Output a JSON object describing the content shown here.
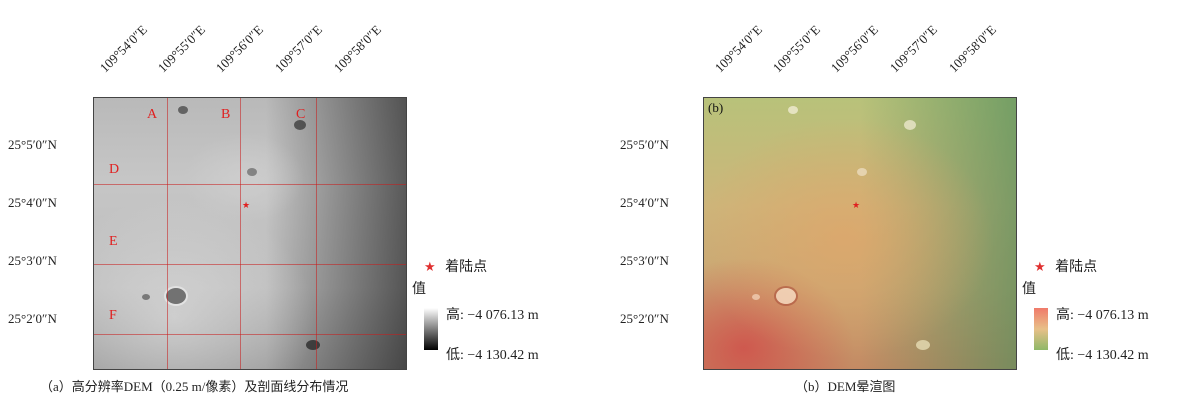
{
  "panels": [
    {
      "lon_labels": [
        "109°54′0″E",
        "109°55′0″E",
        "109°56′0″E",
        "109°57′0″E",
        "109°58′0″E"
      ],
      "lat_labels": [
        "25°5′0″N",
        "25°4′0″N",
        "25°3′0″N",
        "25°2′0″N"
      ],
      "profile_labels": [
        "A",
        "B",
        "C",
        "D",
        "E",
        "F"
      ],
      "legend": {
        "landing_site": "着陆点",
        "value_title": "值",
        "high": "高: −4 076.13 m",
        "low": "低: −4 130.42 m"
      },
      "caption": "（a）高分辨率DEM（0.25 m/像素）及剖面线分布情况"
    },
    {
      "tag": "(b)",
      "lon_labels": [
        "109°54′0″E",
        "109°55′0″E",
        "109°56′0″E",
        "109°57′0″E",
        "109°58′0″E"
      ],
      "lat_labels": [
        "25°5′0″N",
        "25°4′0″N",
        "25°3′0″N",
        "25°2′0″N"
      ],
      "legend": {
        "landing_site": "着陆点",
        "value_title": "值",
        "high": "高: −4 076.13 m",
        "low": "低: −4 130.42 m"
      },
      "caption": "（b）DEM晕渲图"
    }
  ],
  "colors": {
    "profile_line": "#c81e1e",
    "landing_star": "#e02020",
    "legend_gray_high": "#ffffff",
    "legend_gray_low": "#000000",
    "legend_color_high": "#f07a6a",
    "legend_color_low": "#8fb868"
  }
}
